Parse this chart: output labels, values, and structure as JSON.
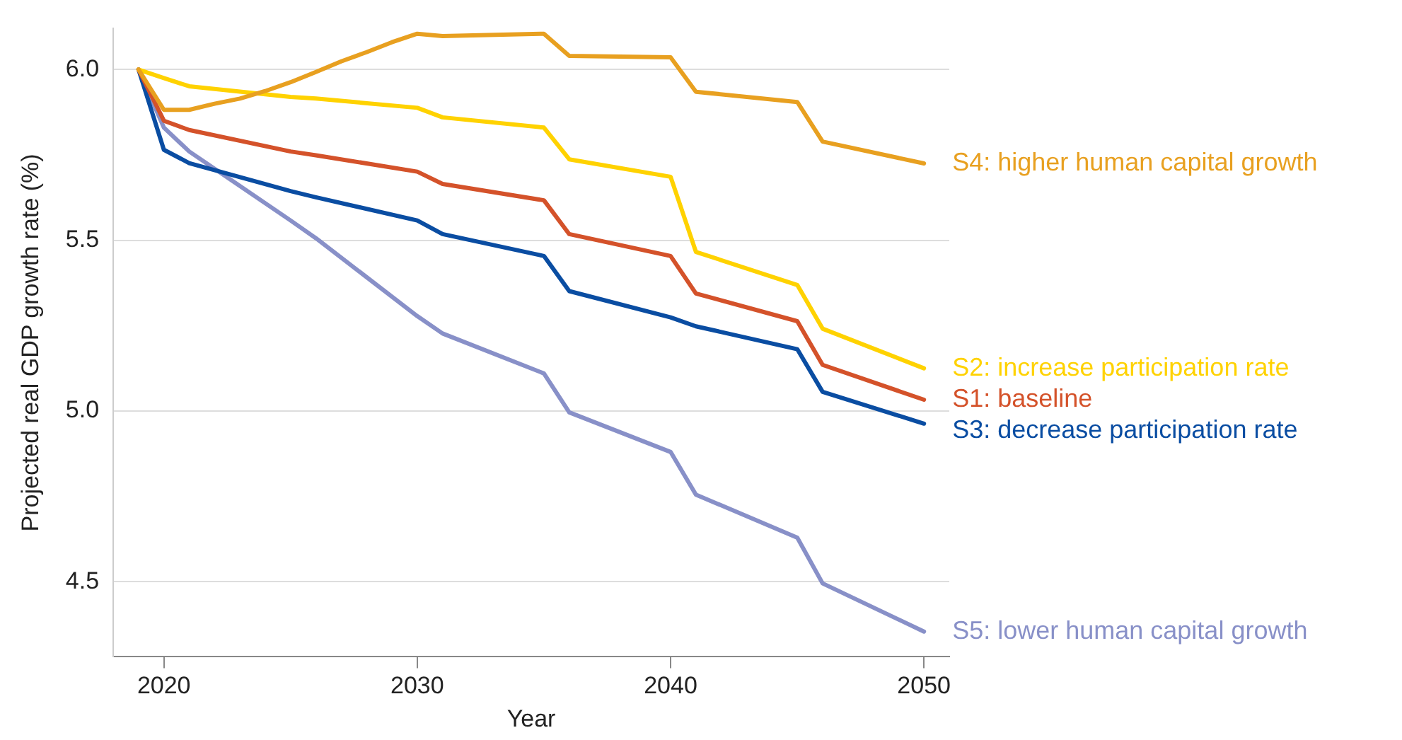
{
  "chart_data": {
    "type": "line",
    "xlabel": "Year",
    "ylabel": "Projected real GDP growth rate (%)",
    "xlim": [
      2018,
      2051
    ],
    "xticks": [
      2020,
      2030,
      2040,
      2050
    ],
    "ylim": [
      4.28,
      6.12
    ],
    "yticks": [
      {
        "value": 4.5,
        "label": "4.5"
      },
      {
        "value": 5,
        "label": "5.0"
      },
      {
        "value": 5.5,
        "label": "5.5"
      },
      {
        "value": 6,
        "label": "6.0"
      }
    ],
    "grid": "y",
    "legend": false,
    "marker": "none",
    "line_style": "solid",
    "series": [
      {
        "name": "S4: higher human capital growth",
        "color": "#e8a020",
        "x": [
          2019,
          2020,
          2021,
          2022,
          2023,
          2024,
          2025,
          2026,
          2027,
          2028,
          2029,
          2030,
          2031,
          2035,
          2036,
          2040,
          2041,
          2045,
          2046,
          2050
        ],
        "values": [
          6.0,
          5.882,
          5.882,
          5.9,
          5.915,
          5.937,
          5.963,
          5.993,
          6.024,
          6.051,
          6.08,
          6.105,
          6.098,
          6.105,
          6.04,
          6.036,
          5.935,
          5.905,
          5.789,
          5.725
        ]
      },
      {
        "name": "S2: increase participation rate",
        "color": "#ffd200",
        "x": [
          2019,
          2020,
          2021,
          2025,
          2026,
          2030,
          2031,
          2035,
          2036,
          2040,
          2041,
          2045,
          2046,
          2050
        ],
        "values": [
          6.0,
          5.975,
          5.951,
          5.92,
          5.915,
          5.888,
          5.86,
          5.83,
          5.737,
          5.686,
          5.466,
          5.369,
          5.241,
          5.125
        ]
      },
      {
        "name": "S1: baseline",
        "color": "#d4522a",
        "x": [
          2019,
          2020,
          2021,
          2025,
          2026,
          2030,
          2031,
          2035,
          2036,
          2040,
          2041,
          2045,
          2046,
          2050
        ],
        "values": [
          6.0,
          5.85,
          5.823,
          5.76,
          5.749,
          5.701,
          5.665,
          5.617,
          5.518,
          5.454,
          5.344,
          5.263,
          5.135,
          5.033
        ]
      },
      {
        "name": "S3: decrease participation rate",
        "color": "#0a4da2",
        "x": [
          2019,
          2020,
          2021,
          2025,
          2026,
          2030,
          2031,
          2035,
          2036,
          2040,
          2041,
          2045,
          2046,
          2050
        ],
        "values": [
          6.0,
          5.765,
          5.726,
          5.644,
          5.626,
          5.558,
          5.518,
          5.454,
          5.351,
          5.274,
          5.248,
          5.181,
          5.056,
          4.963
        ]
      },
      {
        "name": "S5: lower human capital growth",
        "color": "#8890c8",
        "x": [
          2019,
          2020,
          2021,
          2025,
          2026,
          2030,
          2031,
          2035,
          2036,
          2040,
          2041,
          2045,
          2046,
          2050
        ],
        "values": [
          6.0,
          5.83,
          5.76,
          5.558,
          5.506,
          5.278,
          5.227,
          5.11,
          4.996,
          4.88,
          4.755,
          4.629,
          4.495,
          4.354
        ]
      }
    ]
  }
}
